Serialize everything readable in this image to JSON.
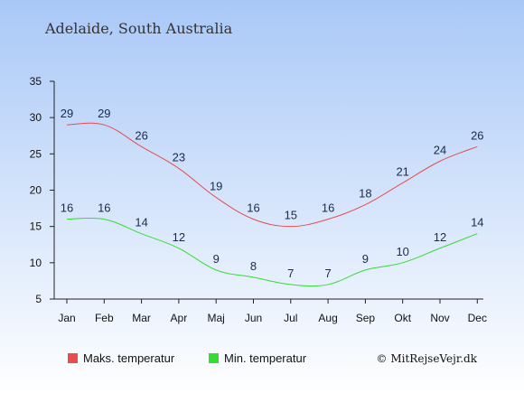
{
  "chart_data": {
    "type": "line",
    "title": "Adelaide, South Australia",
    "categories": [
      "Jan",
      "Feb",
      "Mar",
      "Apr",
      "Maj",
      "Jun",
      "Jul",
      "Aug",
      "Sep",
      "Okt",
      "Nov",
      "Dec"
    ],
    "series": [
      {
        "name": "Maks. temperatur",
        "values": [
          29,
          29,
          26,
          23,
          19,
          16,
          15,
          16,
          18,
          21,
          24,
          26
        ],
        "color": "#e84c4c"
      },
      {
        "name": "Min. temperatur",
        "values": [
          16,
          16,
          14,
          12,
          9,
          8,
          7,
          7,
          9,
          10,
          12,
          14
        ],
        "color": "#33dd33"
      }
    ],
    "ylim": [
      5,
      35
    ],
    "yticks": [
      5,
      10,
      15,
      20,
      25,
      30,
      35
    ],
    "grid": false,
    "legend": "bottom",
    "xlabel": "",
    "ylabel": ""
  },
  "credit": "© MitRejseVejr.dk",
  "colors": {
    "background_top": "#a9c8f7",
    "background_bottom": "#ffffff",
    "label_text": "#1a2a4a"
  }
}
